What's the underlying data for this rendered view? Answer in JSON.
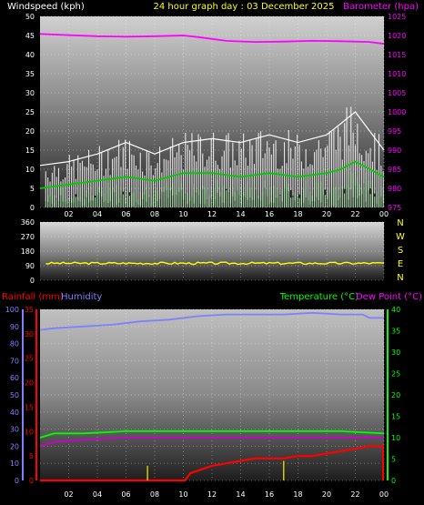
{
  "header": {
    "left": "Windspeed (kph)",
    "center": "24 hour graph day : 03 December 2025",
    "right": "Barometer (hpa)"
  },
  "bottom_header": {
    "rainfall": "Rainfall (mm)",
    "humidity": "Humidity",
    "temperature": "Temperature (°C)",
    "dewpoint": "Dew Point (°C)"
  },
  "colors": {
    "barometer": "#ff00ff",
    "wind_gust": "#ffffff",
    "wind_avg": "#00cc00",
    "wind_fill": "#b8f0b8",
    "direction": "#ffff00",
    "humidity": "#8080ff",
    "temperature": "#00ff00",
    "dewpoint": "#cc00cc",
    "rain": "#ff0000",
    "rain_rate": "#cccc00",
    "header_left": "#ffffff",
    "header_center": "#ffff00",
    "header_right": "#ff00ff",
    "rain_label": "#ff0000",
    "humidity_label": "#8080ff",
    "temp_label": "#00ff00",
    "dew_label": "#ff00ff"
  },
  "chart_data": [
    {
      "id": "wind",
      "type": "line",
      "x_ticks": [
        "02",
        "04",
        "06",
        "08",
        "10",
        "12",
        "14",
        "16",
        "18",
        "20",
        "22",
        "00"
      ],
      "y_left": {
        "ticks": [
          0,
          5,
          10,
          15,
          20,
          25,
          30,
          35,
          40,
          45,
          50
        ],
        "range": [
          0,
          50
        ]
      },
      "y_right": {
        "ticks": [
          975,
          980,
          985,
          990,
          995,
          1000,
          1005,
          1010,
          1015,
          1020,
          1025
        ],
        "range": [
          975,
          1025
        ]
      },
      "series": [
        {
          "key": "barometer",
          "axis": "right",
          "x": [
            0,
            2,
            4,
            6,
            8,
            10,
            11,
            13,
            15,
            17,
            19,
            21,
            23,
            24
          ],
          "values": [
            1020.4,
            1020.1,
            1019.8,
            1019.7,
            1019.8,
            1020.0,
            1019.6,
            1018.6,
            1018.3,
            1018.4,
            1018.6,
            1018.5,
            1018.3,
            1017.8
          ]
        },
        {
          "key": "wind_gust",
          "axis": "left",
          "x": [
            0,
            2,
            4,
            6,
            8,
            10,
            12,
            14,
            16,
            18,
            20,
            21,
            22,
            23,
            24
          ],
          "values": [
            11,
            12,
            14,
            17,
            14,
            17,
            18,
            17,
            19,
            17,
            19,
            22,
            25,
            20,
            15
          ]
        },
        {
          "key": "wind_avg",
          "axis": "left",
          "x": [
            0,
            2,
            4,
            6,
            8,
            10,
            12,
            14,
            16,
            18,
            20,
            21,
            22,
            23,
            24
          ],
          "values": [
            5,
            6,
            7,
            8,
            7,
            9,
            9,
            8,
            9,
            8,
            9,
            10,
            12,
            10,
            8
          ]
        }
      ]
    },
    {
      "id": "direction",
      "type": "line",
      "x_ticks": [
        "02",
        "04",
        "06",
        "08",
        "10",
        "12",
        "14",
        "16",
        "18",
        "20",
        "22",
        "00"
      ],
      "y_left": {
        "ticks": [
          0,
          90,
          180,
          270,
          360
        ],
        "range": [
          0,
          360
        ]
      },
      "compass": [
        "N",
        "W",
        "S",
        "E",
        "N"
      ],
      "series": [
        {
          "key": "direction",
          "axis": "left",
          "x": [
            0,
            6,
            12,
            18,
            24
          ],
          "values": [
            105,
            105,
            105,
            105,
            105
          ]
        }
      ]
    },
    {
      "id": "temp_rain",
      "type": "line",
      "x_ticks": [
        "02",
        "04",
        "06",
        "08",
        "10",
        "12",
        "14",
        "16",
        "18",
        "20",
        "22",
        "00"
      ],
      "y_humidity": {
        "ticks": [
          0,
          10,
          20,
          30,
          40,
          50,
          60,
          70,
          80,
          90,
          100
        ],
        "range": [
          0,
          100
        ]
      },
      "y_rain": {
        "ticks": [
          0,
          5,
          10,
          15,
          20,
          25,
          30,
          35
        ],
        "range": [
          0,
          35
        ]
      },
      "y_temp": {
        "ticks": [
          0,
          5,
          10,
          15,
          20,
          25,
          30,
          35,
          40
        ],
        "range": [
          0,
          40
        ]
      },
      "series": [
        {
          "key": "humidity",
          "axis": "humidity",
          "x": [
            0,
            1,
            3,
            5,
            7,
            9,
            11,
            13,
            15,
            17,
            19,
            21,
            22.5,
            23,
            24
          ],
          "values": [
            88,
            89,
            90,
            91,
            93,
            94,
            96,
            97,
            97,
            97,
            98,
            97,
            97,
            95,
            95
          ]
        },
        {
          "key": "temperature",
          "axis": "temp",
          "x": [
            0,
            1,
            3,
            6,
            9,
            12,
            15,
            18,
            21,
            24
          ],
          "values": [
            10,
            11,
            11,
            11.5,
            11.5,
            11.5,
            11.5,
            11.5,
            11.5,
            11
          ]
        },
        {
          "key": "dewpoint",
          "axis": "temp",
          "x": [
            0,
            1,
            3,
            6,
            9,
            12,
            15,
            18,
            21,
            24
          ],
          "values": [
            8,
            9,
            9.5,
            10,
            10,
            10,
            10,
            10,
            10,
            10
          ]
        },
        {
          "key": "rain",
          "axis": "rain",
          "x": [
            0,
            10.1,
            10.5,
            11,
            12,
            13,
            14,
            15,
            16,
            17,
            18,
            19,
            20,
            21,
            22,
            23,
            24
          ],
          "values": [
            0,
            0,
            1.5,
            2,
            3,
            3.5,
            4,
            4.5,
            4.5,
            4.5,
            5,
            5,
            5.5,
            6,
            6.5,
            7,
            7
          ]
        },
        {
          "key": "rain_rate",
          "axis": "rain",
          "x": [
            7.5,
            17
          ],
          "values": [
            3,
            4
          ]
        }
      ]
    }
  ]
}
